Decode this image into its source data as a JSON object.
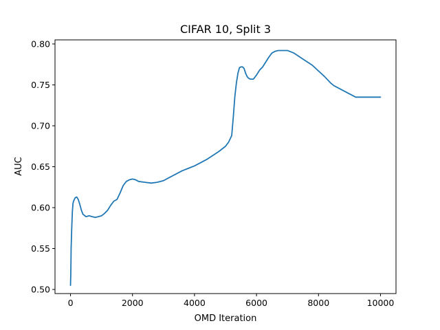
{
  "chart_data": {
    "type": "line",
    "title": "CIFAR 10, Split 3",
    "xlabel": "OMD Iteration",
    "ylabel": "AUC",
    "xlim": [
      -500,
      10500
    ],
    "ylim": [
      0.495,
      0.805
    ],
    "xticks": [
      0,
      2000,
      4000,
      6000,
      8000,
      10000
    ],
    "yticks": [
      0.5,
      0.55,
      0.6,
      0.65,
      0.7,
      0.75,
      0.8
    ],
    "xtick_labels": [
      "0",
      "2000",
      "4000",
      "6000",
      "8000",
      "10000"
    ],
    "ytick_labels": [
      "0.50",
      "0.55",
      "0.60",
      "0.65",
      "0.70",
      "0.75",
      "0.80"
    ],
    "grid": false,
    "color": "#1f77b4",
    "series": [
      {
        "x": [
          0,
          10,
          20,
          40,
          60,
          80,
          100,
          150,
          200,
          250,
          300,
          350,
          400,
          500,
          600,
          700,
          800,
          900,
          1000,
          1100,
          1200,
          1300,
          1400,
          1500,
          1600,
          1700,
          1800,
          1900,
          2000,
          2100,
          2200,
          2400,
          2600,
          2800,
          3000,
          3200,
          3400,
          3600,
          3800,
          4000,
          4200,
          4400,
          4600,
          4800,
          5000,
          5100,
          5200,
          5250,
          5300,
          5350,
          5400,
          5450,
          5500,
          5550,
          5600,
          5650,
          5700,
          5750,
          5800,
          5900,
          6000,
          6100,
          6200,
          6300,
          6400,
          6500,
          6600,
          6700,
          6800,
          7000,
          7200,
          7400,
          7600,
          7800,
          8000,
          8200,
          8400,
          8500,
          8600,
          8800,
          9000,
          9200,
          9400,
          9600,
          9800,
          10000
        ],
        "y": [
          0.505,
          0.52,
          0.55,
          0.575,
          0.595,
          0.605,
          0.608,
          0.612,
          0.613,
          0.61,
          0.604,
          0.597,
          0.592,
          0.589,
          0.59,
          0.589,
          0.588,
          0.589,
          0.59,
          0.593,
          0.597,
          0.603,
          0.608,
          0.61,
          0.618,
          0.627,
          0.632,
          0.634,
          0.635,
          0.634,
          0.632,
          0.631,
          0.63,
          0.631,
          0.633,
          0.637,
          0.641,
          0.645,
          0.648,
          0.651,
          0.655,
          0.659,
          0.664,
          0.669,
          0.675,
          0.68,
          0.688,
          0.71,
          0.735,
          0.752,
          0.764,
          0.771,
          0.772,
          0.772,
          0.77,
          0.764,
          0.76,
          0.758,
          0.757,
          0.757,
          0.762,
          0.768,
          0.772,
          0.778,
          0.784,
          0.789,
          0.791,
          0.792,
          0.792,
          0.792,
          0.789,
          0.784,
          0.779,
          0.774,
          0.767,
          0.76,
          0.752,
          0.749,
          0.747,
          0.743,
          0.739,
          0.735,
          0.735,
          0.735,
          0.735,
          0.735
        ]
      }
    ]
  }
}
